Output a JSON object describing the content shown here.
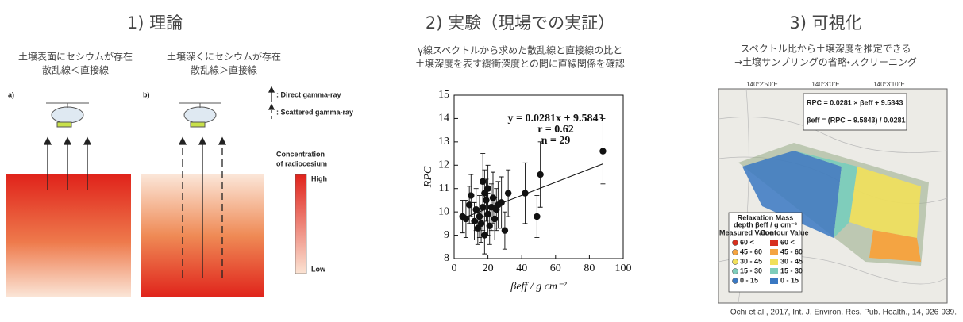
{
  "panel1": {
    "title": "1) 理論",
    "caption_a": [
      "土壌表面にセシウムが存在",
      "散乱線＜直接線"
    ],
    "caption_b": [
      "土壌深くにセシウムが存在",
      "散乱線＞直接線"
    ],
    "label_a": "a)",
    "label_b": "b)",
    "legend_direct": ": Direct  gamma-ray",
    "legend_scattered": ": Scattered gamma-ray",
    "colorbar_title": [
      "Concentration",
      "of radiocesium"
    ],
    "colorbar_high": "High",
    "colorbar_low": "Low"
  },
  "panel2": {
    "title": "2) 実験（現場での実証）",
    "subtitle": [
      "γ線スペクトルから求めた散乱線と直接線の比と",
      "土壌深度を表す緩衝深度との間に直線関係を確認"
    ]
  },
  "chart_data": {
    "type": "scatter",
    "x_label": "βeff / g cm⁻²",
    "y_label": "RPC",
    "x": [
      5,
      7,
      9,
      10,
      12,
      13,
      14,
      15,
      16,
      17,
      17,
      18,
      18,
      19,
      20,
      20,
      21,
      22,
      23,
      24,
      25,
      26,
      28,
      30,
      32,
      42,
      49,
      51,
      88
    ],
    "series": [
      {
        "name": "RPC",
        "color": "#111111",
        "values": [
          9.8,
          9.7,
          10.3,
          10.7,
          9.6,
          10.1,
          9.3,
          9.8,
          9.5,
          10.2,
          11.3,
          9.0,
          10.8,
          10.5,
          9.9,
          11.0,
          9.4,
          10.2,
          10.6,
          9.7,
          10.1,
          10.3,
          10.4,
          9.2,
          10.8,
          10.8,
          9.8,
          11.6,
          12.6
        ],
        "errors": [
          0.7,
          0.8,
          0.8,
          0.9,
          0.8,
          0.9,
          0.7,
          0.9,
          0.8,
          1.0,
          1.2,
          0.8,
          1.0,
          0.9,
          0.9,
          1.0,
          0.8,
          1.0,
          1.1,
          0.9,
          0.9,
          1.0,
          1.1,
          0.8,
          1.0,
          1.3,
          0.9,
          1.4,
          1.4
        ]
      }
    ],
    "regression": {
      "slope": 0.0281,
      "intercept": 9.5843,
      "label": "y = 0.0281x + 9.5843"
    },
    "r_label": "r = 0.62",
    "n_label": "n = 29",
    "xlim": [
      0,
      100
    ],
    "ylim": [
      8,
      15
    ],
    "xticks": [
      0,
      20,
      40,
      60,
      80,
      100
    ],
    "yticks": [
      8,
      9,
      10,
      11,
      12,
      13,
      14,
      15
    ]
  },
  "panel3": {
    "title": "3) 可視化",
    "subtitle": [
      "スペクトル比から土壌深度を推定できる",
      "→土壌サンプリングの省略・スクリーニング"
    ],
    "map_lon_labels": [
      "140°2'50\"E",
      "140°3'0\"E",
      "140°3'10\"E"
    ],
    "equation_1": "RPC = 0.0281 × βeff + 9.5843",
    "equation_2": "βeff = (RPC − 9.5843) / 0.0281",
    "legend_title": [
      "Relaxation Mass",
      "depth βeff / g cm⁻²"
    ],
    "legend_measured": "Measured Value",
    "legend_contour": "Contour Value",
    "legend_classes": [
      "60 <",
      "45 - 60",
      "30 - 45",
      "15 - 30",
      "0 - 15"
    ],
    "legend_colors": [
      "#d7301f",
      "#f4a442",
      "#f1e05a",
      "#7fcdbb",
      "#3a78c2"
    ],
    "citation": "Ochi et al., 2017, Int. J. Environ. Res. Pub. Health., 14, 926-939."
  }
}
